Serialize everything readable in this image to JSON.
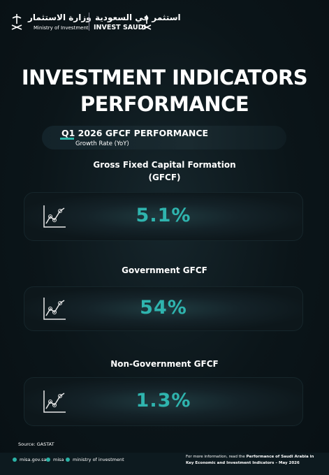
{
  "header": {
    "ministry_ar": "وزارة الاستثمار",
    "ministry_en": "Ministry of Investment",
    "brand_ar": "استثمر في السعودية",
    "brand_en": "INVEST SAUDI"
  },
  "title": "INVESTMENT INDICATORS PERFORMANCE",
  "section": {
    "heading": "Q1 2026 GFCF PERFORMANCE",
    "subheading": "Growth Rate (YoY)"
  },
  "indicators": [
    {
      "label": "Gross Fixed Capital Formation (GFCF)",
      "value": "5.1%"
    },
    {
      "label": "Government GFCF",
      "value": "54%"
    },
    {
      "label": "Non-Government GFCF",
      "value": "1.3%"
    }
  ],
  "footer": {
    "source": "Source: GASTAT",
    "links": [
      "misa.gov.sa",
      "misa",
      "ministry of investment"
    ],
    "note": "For more information, read the",
    "note_bold": "Performance of Saudi Arabia in Key Economic and Investment Indicators – May 2026"
  }
}
